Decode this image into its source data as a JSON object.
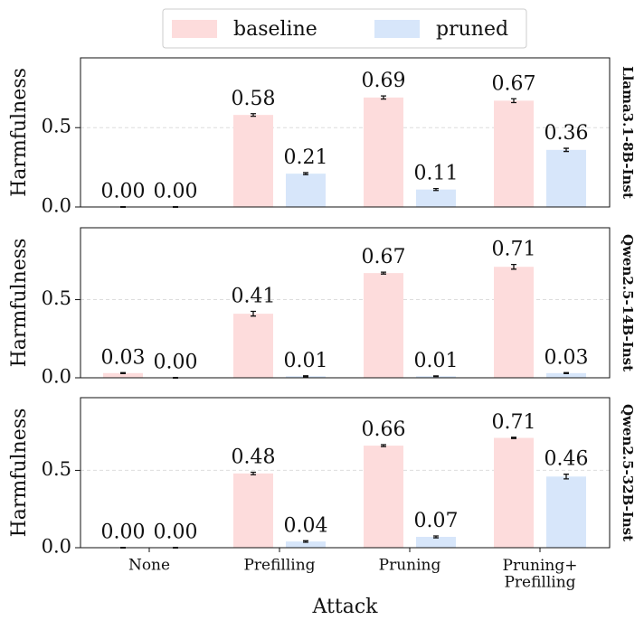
{
  "chart_data": [
    {
      "type": "bar",
      "y_label": "Harmfulness",
      "panel_label": "Llama3.1-8B-Inst",
      "categories": [
        "None",
        "Prefilling",
        "Pruning",
        "Pruning+\nPrefilling"
      ],
      "series": [
        {
          "name": "baseline",
          "color": "#fddcdc",
          "values": [
            0,
            0.58,
            0.69,
            0.67
          ],
          "errors": [
            0.002,
            0.008,
            0.01,
            0.012
          ],
          "value_labels": [
            "0.00",
            "0.58",
            "0.69",
            "0.67"
          ]
        },
        {
          "name": "pruned",
          "color": "#d7e6fa",
          "values": [
            0,
            0.21,
            0.11,
            0.36
          ],
          "errors": [
            0.002,
            0.006,
            0.006,
            0.01
          ],
          "value_labels": [
            "0.00",
            "0.21",
            "0.11",
            "0.36"
          ]
        }
      ],
      "ylim": [
        0,
        0.94
      ],
      "yticks": [
        {
          "value": 0,
          "label": "0.0"
        },
        {
          "value": 0.5,
          "label": "0.5"
        }
      ],
      "grid": true
    },
    {
      "type": "bar",
      "y_label": "Harmfulness",
      "panel_label": "Qwen2.5-14B-Inst",
      "categories": [
        "None",
        "Prefilling",
        "Pruning",
        "Pruning+\nPrefilling"
      ],
      "series": [
        {
          "name": "baseline",
          "color": "#fddcdc",
          "values": [
            0.03,
            0.41,
            0.67,
            0.71
          ],
          "errors": [
            0.003,
            0.015,
            0.006,
            0.015
          ],
          "value_labels": [
            "0.03",
            "0.41",
            "0.67",
            "0.71"
          ]
        },
        {
          "name": "pruned",
          "color": "#d7e6fa",
          "values": [
            0,
            0.01,
            0.01,
            0.03
          ],
          "errors": [
            0.002,
            0.003,
            0.002,
            0.003
          ],
          "value_labels": [
            "0.00",
            "0.01",
            "0.01",
            "0.03"
          ]
        }
      ],
      "ylim": [
        0,
        0.96
      ],
      "yticks": [
        {
          "value": 0,
          "label": "0.0"
        },
        {
          "value": 0.5,
          "label": "0.5"
        }
      ],
      "grid": true
    },
    {
      "type": "bar",
      "y_label": "Harmfulness",
      "panel_label": "Qwen2.5-32B-Inst",
      "x_label": "Attack",
      "categories": [
        "None",
        "Prefilling",
        "Pruning",
        "Pruning+\nPrefilling"
      ],
      "series": [
        {
          "name": "baseline",
          "color": "#fddcdc",
          "values": [
            0,
            0.48,
            0.66,
            0.71
          ],
          "errors": [
            0.002,
            0.008,
            0.006,
            0.004
          ],
          "value_labels": [
            "0.00",
            "0.48",
            "0.66",
            "0.71"
          ]
        },
        {
          "name": "pruned",
          "color": "#d7e6fa",
          "values": [
            0,
            0.04,
            0.07,
            0.46
          ],
          "errors": [
            0.002,
            0.005,
            0.006,
            0.015
          ],
          "value_labels": [
            "0.00",
            "0.04",
            "0.07",
            "0.46"
          ]
        }
      ],
      "ylim": [
        0,
        0.97
      ],
      "yticks": [
        {
          "value": 0,
          "label": "0.0"
        },
        {
          "value": 0.5,
          "label": "0.5"
        }
      ],
      "grid": true
    }
  ]
}
